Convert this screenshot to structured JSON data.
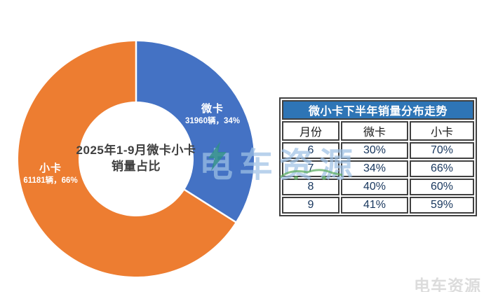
{
  "donut": {
    "center_label": {
      "line1": "2025年1-9月微卡小卡",
      "line2": "销量占比"
    }
  },
  "chart_data": [
    {
      "type": "pie",
      "subtype": "donut",
      "title": "2025年1-9月微卡小卡销量占比",
      "start_angle": "top",
      "direction": "clockwise",
      "slices": [
        {
          "label": "微卡",
          "units": 31960,
          "percent": 34,
          "units_text": "31960辆，34%",
          "color": "#4472C4"
        },
        {
          "label": "小卡",
          "units": 61181,
          "percent": 66,
          "units_text": "61181辆，66%",
          "color": "#ED7D31"
        }
      ]
    },
    {
      "type": "table",
      "title": "微小卡下半年销量分布走势",
      "columns": [
        "月份",
        "微卡",
        "小卡"
      ],
      "rows": [
        [
          "6",
          "30%",
          "70%"
        ],
        [
          "7",
          "34%",
          "66%"
        ],
        [
          "8",
          "40%",
          "60%"
        ],
        [
          "9",
          "41%",
          "59%"
        ]
      ],
      "header_bg": "#2E75B6",
      "header_text_color": "#ffffff",
      "border_color": "#404040"
    }
  ],
  "watermarks": {
    "center_text": "电车资源",
    "corner_text": "电车资源"
  },
  "colors": {
    "slice_blue": "#4472C4",
    "slice_orange": "#ED7D31",
    "table_header_bg": "#2E75B6",
    "center_title_text": "#3f3f3f",
    "watermark_blue": "#9ec0e4",
    "watermark_teal": "#2f9086",
    "watermark_green": "#5fae63"
  }
}
